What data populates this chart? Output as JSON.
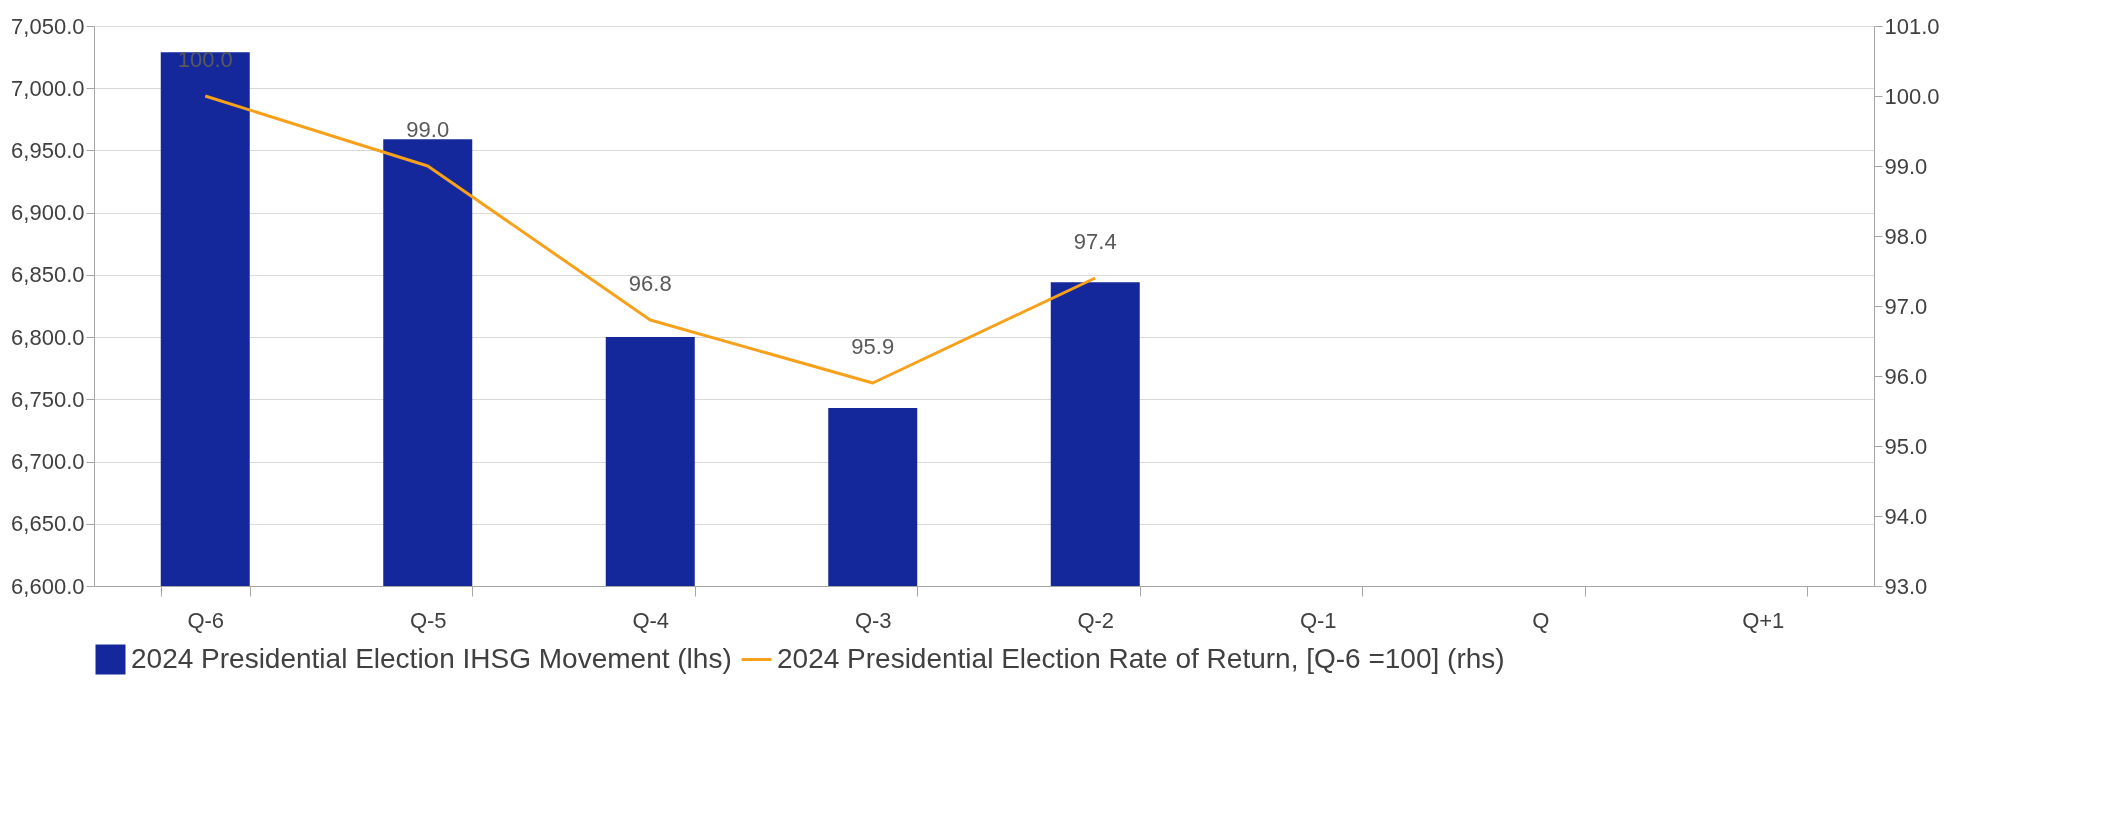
{
  "chart_data": {
    "type": "bar",
    "categories": [
      "Q-6",
      "Q-5",
      "Q-4",
      "Q-3",
      "Q-2",
      "Q-1",
      "Q",
      "Q+1"
    ],
    "series": [
      {
        "name": "2024 Presidential Election IHSG Movement (lhs)",
        "color": "#15289b",
        "values": [
          7029,
          6959,
          6800,
          6743,
          6844,
          null,
          null,
          null
        ]
      },
      {
        "name": "2024 Presidential Election Rate of Return, [Q-6 =100] (rhs)",
        "type": "line",
        "axis": "y2",
        "color": "#f7a11a",
        "values": [
          100.0,
          99.0,
          96.8,
          95.9,
          97.4,
          null,
          null,
          null
        ],
        "value_labels": [
          "100.0",
          "99.0",
          "96.8",
          "95.9",
          "97.4",
          null,
          null,
          null
        ]
      }
    ],
    "ylim": [
      6600,
      7050
    ],
    "yticks": [
      {
        "value": 6600,
        "label": "6,600.0"
      },
      {
        "value": 6650,
        "label": "6,650.0"
      },
      {
        "value": 6700,
        "label": "6,700.0"
      },
      {
        "value": 6750,
        "label": "6,750.0"
      },
      {
        "value": 6800,
        "label": "6,800.0"
      },
      {
        "value": 6850,
        "label": "6,850.0"
      },
      {
        "value": 6900,
        "label": "6,900.0"
      },
      {
        "value": 6950,
        "label": "6,950.0"
      },
      {
        "value": 7000,
        "label": "7,000.0"
      },
      {
        "value": 7050,
        "label": "7,050.0"
      }
    ],
    "y2lim": [
      93,
      101
    ],
    "y2ticks": [
      {
        "value": 93,
        "label": "93.0"
      },
      {
        "value": 94,
        "label": "94.0"
      },
      {
        "value": 95,
        "label": "95.0"
      },
      {
        "value": 96,
        "label": "96.0"
      },
      {
        "value": 97,
        "label": "97.0"
      },
      {
        "value": 98,
        "label": "98.0"
      },
      {
        "value": 99,
        "label": "99.0"
      },
      {
        "value": 100,
        "label": "100.0"
      },
      {
        "value": 101,
        "label": "101.0"
      }
    ],
    "grid": "y",
    "legend": "bottom"
  }
}
